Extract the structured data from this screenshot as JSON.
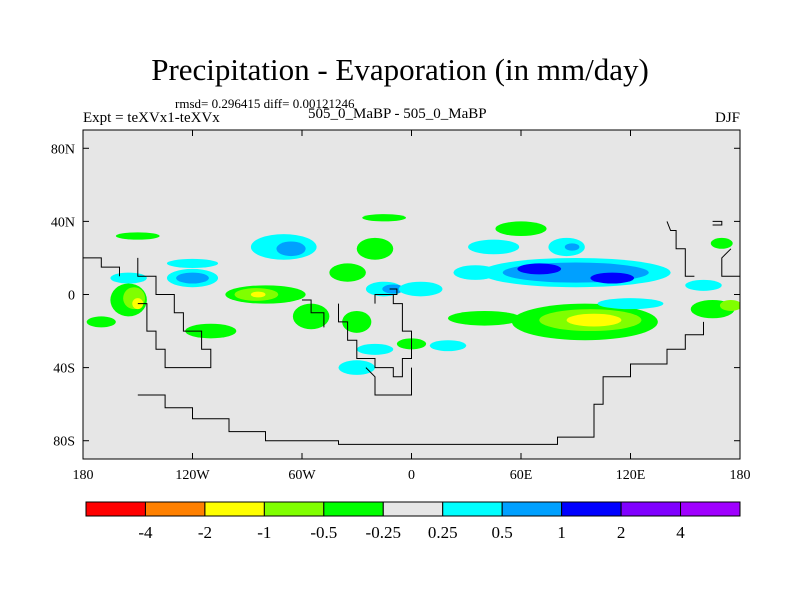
{
  "header": {
    "title": "Precipitation - Evaporation (in mm/day)",
    "stats": "rmsd= 0.296415 diff= 0.00121246",
    "left_label": "Expt = teXVx1-teXVx",
    "center_label": "505_0_MaBP - 505_0_MaBP",
    "right_label": "DJF"
  },
  "chart_data": {
    "type": "heatmap",
    "title": "Precipitation - Evaporation (in mm/day)",
    "xlabel": "",
    "ylabel": "",
    "xlim": [
      -180,
      180
    ],
    "ylim": [
      -90,
      90
    ],
    "x_ticks": [
      {
        "value": -180,
        "label": "180"
      },
      {
        "value": -120,
        "label": "120W"
      },
      {
        "value": -60,
        "label": "60W"
      },
      {
        "value": 0,
        "label": "0"
      },
      {
        "value": 60,
        "label": "60E"
      },
      {
        "value": 120,
        "label": "120E"
      },
      {
        "value": 180,
        "label": "180"
      }
    ],
    "y_ticks": [
      {
        "value": 80,
        "label": "80N"
      },
      {
        "value": 40,
        "label": "40N"
      },
      {
        "value": 0,
        "label": "0"
      },
      {
        "value": -40,
        "label": "40S"
      },
      {
        "value": -80,
        "label": "80S"
      }
    ],
    "colorbar": {
      "labels": [
        "-4",
        "-2",
        "-1",
        "-0.5",
        "-0.25",
        "0.25",
        "0.5",
        "1",
        "2",
        "4"
      ],
      "colors": [
        "#ff0000",
        "#ff8000",
        "#ffff00",
        "#80ff00",
        "#00ff00",
        "#e6e6e6",
        "#00ffff",
        "#00a0ff",
        "#0000ff",
        "#8000ff",
        "#a000ff"
      ]
    },
    "colors": {
      "background": "#e6e6e6",
      "v_m05": "#80ff00",
      "v_m025": "#00ff00",
      "v_p025": "#00ffff",
      "v_p05": "#00a0ff",
      "v_p1": "#0000ff",
      "v_m1": "#ffff00"
    },
    "blobs": [
      {
        "lon": -15,
        "lat": 42,
        "rlon": 12,
        "rlat": 2,
        "level": "v_m025"
      },
      {
        "lon": -120,
        "lat": 17,
        "rlon": 14,
        "rlat": 2.5,
        "level": "v_p025"
      },
      {
        "lon": -155,
        "lat": 9,
        "rlon": 10,
        "rlat": 3,
        "level": "v_p025"
      },
      {
        "lon": -120,
        "lat": 9,
        "rlon": 14,
        "rlat": 5,
        "level": "v_p025"
      },
      {
        "lon": -120,
        "lat": 9,
        "rlon": 9,
        "rlat": 3,
        "level": "v_p05"
      },
      {
        "lon": -70,
        "lat": 26,
        "rlon": 18,
        "rlat": 7,
        "level": "v_p025"
      },
      {
        "lon": -66,
        "lat": 25,
        "rlon": 8,
        "rlat": 4,
        "level": "v_p05"
      },
      {
        "lon": -20,
        "lat": 25,
        "rlon": 10,
        "rlat": 6,
        "level": "v_m025"
      },
      {
        "lon": -35,
        "lat": 12,
        "rlon": 10,
        "rlat": 5,
        "level": "v_m025"
      },
      {
        "lon": -15,
        "lat": 3,
        "rlon": 10,
        "rlat": 4,
        "level": "v_p025"
      },
      {
        "lon": -10,
        "lat": 3,
        "rlon": 6,
        "rlat": 2.5,
        "level": "v_p05"
      },
      {
        "lon": 5,
        "lat": 3,
        "rlon": 12,
        "rlat": 4,
        "level": "v_p025"
      },
      {
        "lon": -80,
        "lat": 0,
        "rlon": 22,
        "rlat": 5,
        "level": "v_m025"
      },
      {
        "lon": -85,
        "lat": 0,
        "rlon": 12,
        "rlat": 3.5,
        "level": "v_m05"
      },
      {
        "lon": -84,
        "lat": 0,
        "rlon": 4,
        "rlat": 1.6,
        "level": "v_m1"
      },
      {
        "lon": -55,
        "lat": -12,
        "rlon": 10,
        "rlat": 7,
        "level": "v_m025"
      },
      {
        "lon": -30,
        "lat": -15,
        "rlon": 8,
        "rlat": 6,
        "level": "v_m025"
      },
      {
        "lon": -30,
        "lat": -40,
        "rlon": 10,
        "rlat": 4,
        "level": "v_p025"
      },
      {
        "lon": -155,
        "lat": -3,
        "rlon": 10,
        "rlat": 9,
        "level": "v_m025"
      },
      {
        "lon": -152,
        "lat": -2,
        "rlon": 6,
        "rlat": 6,
        "level": "v_m05"
      },
      {
        "lon": -150,
        "lat": -5,
        "rlon": 3,
        "rlat": 3,
        "level": "v_m1"
      },
      {
        "lon": -170,
        "lat": -15,
        "rlon": 8,
        "rlat": 3,
        "level": "v_m025"
      },
      {
        "lon": -110,
        "lat": -20,
        "rlon": 14,
        "rlat": 4,
        "level": "v_m025"
      },
      {
        "lon": 60,
        "lat": 36,
        "rlon": 14,
        "rlat": 4,
        "level": "v_m025"
      },
      {
        "lon": 45,
        "lat": 26,
        "rlon": 14,
        "rlat": 4,
        "level": "v_p025"
      },
      {
        "lon": 85,
        "lat": 26,
        "rlon": 10,
        "rlat": 5,
        "level": "v_p025"
      },
      {
        "lon": 88,
        "lat": 26,
        "rlon": 4,
        "rlat": 2,
        "level": "v_p05"
      },
      {
        "lon": 90,
        "lat": 12,
        "rlon": 52,
        "rlat": 8,
        "level": "v_p025"
      },
      {
        "lon": 90,
        "lat": 12,
        "rlon": 40,
        "rlat": 5.5,
        "level": "v_p05"
      },
      {
        "lon": 70,
        "lat": 14,
        "rlon": 12,
        "rlat": 3,
        "level": "v_p1"
      },
      {
        "lon": 110,
        "lat": 9,
        "rlon": 12,
        "rlat": 3,
        "level": "v_p1"
      },
      {
        "lon": 35,
        "lat": 12,
        "rlon": 12,
        "rlat": 4,
        "level": "v_p025"
      },
      {
        "lon": 95,
        "lat": -15,
        "rlon": 40,
        "rlat": 10,
        "level": "v_m025"
      },
      {
        "lon": 98,
        "lat": -14,
        "rlon": 28,
        "rlat": 6,
        "level": "v_m05"
      },
      {
        "lon": 100,
        "lat": -14,
        "rlon": 15,
        "rlat": 3.5,
        "level": "v_m1"
      },
      {
        "lon": 40,
        "lat": -13,
        "rlon": 20,
        "rlat": 4,
        "level": "v_m025"
      },
      {
        "lon": 120,
        "lat": -5,
        "rlon": 18,
        "rlat": 3,
        "level": "v_p025"
      },
      {
        "lon": 165,
        "lat": -8,
        "rlon": 12,
        "rlat": 5,
        "level": "v_m025"
      },
      {
        "lon": 175,
        "lat": -6,
        "rlon": 6,
        "rlat": 3,
        "level": "v_m05"
      },
      {
        "lon": 160,
        "lat": 5,
        "rlon": 10,
        "rlat": 3,
        "level": "v_p025"
      },
      {
        "lon": -20,
        "lat": -30,
        "rlon": 10,
        "rlat": 3,
        "level": "v_p025"
      },
      {
        "lon": 0,
        "lat": -27,
        "rlon": 8,
        "rlat": 3,
        "level": "v_m025"
      },
      {
        "lon": 20,
        "lat": -28,
        "rlon": 10,
        "rlat": 3,
        "level": "v_p025"
      },
      {
        "lon": -150,
        "lat": 32,
        "rlon": 12,
        "rlat": 2,
        "level": "v_m025"
      },
      {
        "lon": 170,
        "lat": 28,
        "rlon": 6,
        "rlat": 3,
        "level": "v_m025"
      }
    ]
  }
}
